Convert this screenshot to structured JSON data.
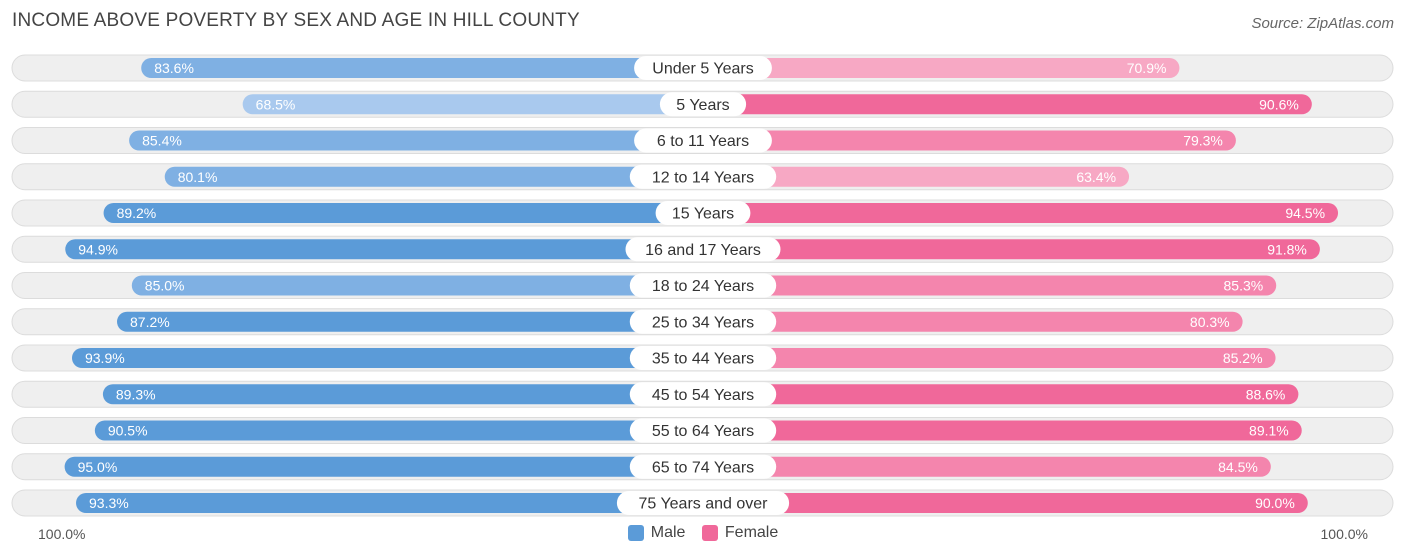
{
  "chart_data": {
    "type": "bar",
    "title": "INCOME ABOVE POVERTY BY SEX AND AGE IN HILL COUNTY",
    "source": "Source: ZipAtlas.com",
    "categories": [
      "Under 5 Years",
      "5 Years",
      "6 to 11 Years",
      "12 to 14 Years",
      "15 Years",
      "16 and 17 Years",
      "18 to 24 Years",
      "25 to 34 Years",
      "35 to 44 Years",
      "45 to 54 Years",
      "55 to 64 Years",
      "65 to 74 Years",
      "75 Years and over"
    ],
    "series": [
      {
        "name": "Male",
        "values": [
          83.6,
          68.5,
          85.4,
          80.1,
          89.2,
          94.9,
          85.0,
          87.2,
          93.9,
          89.3,
          90.5,
          95.0,
          93.3
        ],
        "labels": [
          "83.6%",
          "68.5%",
          "85.4%",
          "80.1%",
          "89.2%",
          "94.9%",
          "85.0%",
          "87.2%",
          "93.9%",
          "89.3%",
          "90.5%",
          "95.0%",
          "93.3%"
        ]
      },
      {
        "name": "Female",
        "values": [
          70.9,
          90.6,
          79.3,
          63.4,
          94.5,
          91.8,
          85.3,
          80.3,
          85.2,
          88.6,
          89.1,
          84.5,
          90.0
        ],
        "labels": [
          "70.9%",
          "90.6%",
          "79.3%",
          "63.4%",
          "94.5%",
          "91.8%",
          "85.3%",
          "80.3%",
          "85.2%",
          "88.6%",
          "89.1%",
          "84.5%",
          "90.0%"
        ]
      }
    ],
    "xlim": [
      0,
      100
    ],
    "axis_left_label": "100.0%",
    "axis_right_label": "100.0%",
    "legend": [
      "Male",
      "Female"
    ],
    "colors": {
      "male_dark": "#5b9bd8",
      "male_light": "#a9c9ee",
      "female_dark": "#f0689a",
      "female_light": "#f7a8c4"
    }
  }
}
